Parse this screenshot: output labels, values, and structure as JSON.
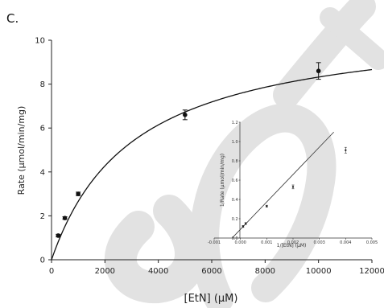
{
  "panel_label": "C.",
  "colors": {
    "axis": "#222222",
    "curve": "#111111",
    "marker": "#111111",
    "watermark": "#e2e2e2"
  },
  "chart_data": [
    {
      "type": "scatter",
      "xlabel": "[EtN] (µM)",
      "ylabel": "Rate (µmol/min/mg)",
      "xlim": [
        0,
        12000
      ],
      "ylim": [
        0,
        10
      ],
      "xticks": [
        0,
        2000,
        4000,
        6000,
        8000,
        10000,
        12000
      ],
      "yticks": [
        0,
        2,
        4,
        6,
        8,
        10
      ],
      "points": [
        {
          "x": 250,
          "y": 1.1,
          "err": 0.06
        },
        {
          "x": 500,
          "y": 1.9,
          "err": 0.06
        },
        {
          "x": 1000,
          "y": 3.0,
          "err": 0.08
        },
        {
          "x": 5000,
          "y": 6.6,
          "err": 0.22
        },
        {
          "x": 10000,
          "y": 8.6,
          "err": 0.38
        }
      ],
      "fit": {
        "model": "michaelis-menten",
        "vmax": 10.9,
        "km": 3100
      },
      "grid": false,
      "legend": "none"
    },
    {
      "type": "scatter",
      "inset": true,
      "xlabel": "1/[EtN] (µM)",
      "ylabel": "1/Rate (µmol/min/mg)",
      "xlim": [
        -0.001,
        0.005
      ],
      "ylim": [
        0,
        1.2
      ],
      "xticks": [
        -0.001,
        0.0,
        0.001,
        0.002,
        0.003,
        0.004,
        0.005
      ],
      "xtick_labels": [
        "-0.001",
        "0.000",
        "0.001",
        "0.002",
        "0.003",
        "0.004",
        "0.005"
      ],
      "yticks": [
        0.0,
        0.2,
        0.4,
        0.6,
        0.8,
        1.0,
        1.2
      ],
      "ytick_labels": [
        "0.0",
        "0.2",
        "0.4",
        "0.6",
        "0.8",
        "1.0",
        "1.2"
      ],
      "points": [
        {
          "x": 0.0001,
          "y": 0.12,
          "err": 0.01
        },
        {
          "x": 0.0002,
          "y": 0.15,
          "err": 0.01
        },
        {
          "x": 0.001,
          "y": 0.33,
          "err": 0.01
        },
        {
          "x": 0.002,
          "y": 0.53,
          "err": 0.02
        },
        {
          "x": 0.004,
          "y": 0.91,
          "err": 0.03
        }
      ],
      "fit": {
        "model": "linear",
        "slope": 284,
        "intercept": 0.09,
        "x_range": [
          -0.0003,
          0.00355
        ]
      },
      "grid": false,
      "legend": "none"
    }
  ]
}
